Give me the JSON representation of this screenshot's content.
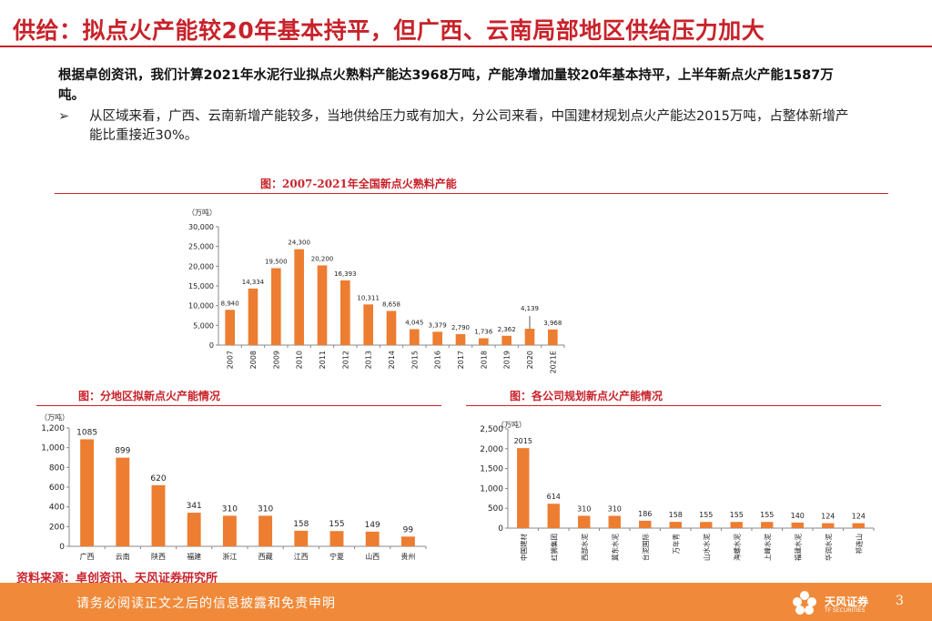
{
  "page": {
    "title": "供给：拟点火产能较20年基本持平，但广西、云南局部地区供给压力加大",
    "lead": "根据卓创资讯，我们计算2021年水泥行业拟点火熟料产能达3968万吨，产能净增加量较20年基本持平，上半年新点火产能1587万吨。",
    "bullet_mark": "➢",
    "bullet": "从区域来看，广西、云南新增产能较多，当地供给压力或有加大，分公司来看，中国建材规划点火产能达2015万吨，占整体新增产能比重接近30%。",
    "source": "资料来源：卓创资讯、天风证券研究所",
    "footer_text": "请务必阅读正文之后的信息披露和免责申明",
    "brand_name": "天风证券",
    "brand_sub": "TF SECURITIES",
    "page_number": "3"
  },
  "colors": {
    "bar": "#ed7d31",
    "accent": "#c8222a",
    "footer": "#f08a3a"
  },
  "chart_data": [
    {
      "type": "bar",
      "title": "图：2007-2021年全国新点火熟料产能",
      "unit": "（万吨）",
      "categories": [
        "2007",
        "2008",
        "2009",
        "2010",
        "2011",
        "2012",
        "2013",
        "2014",
        "2015",
        "2016",
        "2017",
        "2018",
        "2019",
        "2020",
        "2021E"
      ],
      "values": [
        8940,
        14334,
        19500,
        24300,
        20200,
        16393,
        10311,
        8658,
        4045,
        3379,
        2790,
        1736,
        2362,
        4139,
        3968
      ],
      "labels": [
        "8,940",
        "14,334",
        "19,500",
        "24,300",
        "20,200",
        "16,393",
        "10,311",
        "8,658",
        "4,045",
        "3,379",
        "2,790",
        "1,736",
        "2,362",
        "4,139",
        "3,968"
      ],
      "ylim": [
        0,
        30000
      ],
      "yticks": [
        0,
        5000,
        10000,
        15000,
        20000,
        25000,
        30000
      ],
      "ytick_labels": [
        "0",
        "5,000",
        "10,000",
        "15,000",
        "20,000",
        "25,000",
        "30,000"
      ]
    },
    {
      "type": "bar",
      "title": "图：分地区拟新点火产能情况",
      "unit": "（万吨）",
      "categories": [
        "广西",
        "云南",
        "陕西",
        "福建",
        "浙江",
        "西藏",
        "江西",
        "宁夏",
        "山西",
        "贵州"
      ],
      "values": [
        1085,
        899,
        620,
        341,
        310,
        310,
        158,
        155,
        149,
        99
      ],
      "labels": [
        "1085",
        "899",
        "620",
        "341",
        "310",
        "310",
        "158",
        "155",
        "149",
        "99"
      ],
      "ylim": [
        0,
        1200
      ],
      "yticks": [
        0,
        200,
        400,
        600,
        800,
        1000,
        1200
      ],
      "ytick_labels": [
        "0",
        "200",
        "400",
        "600",
        "800",
        "1,000",
        "1,200"
      ]
    },
    {
      "type": "bar",
      "title": "图：各公司规划新点火产能情况",
      "unit": "（万吨）",
      "categories": [
        "中国建材",
        "红狮集团",
        "西部水泥",
        "冀东水泥",
        "台泥国际",
        "万年青",
        "山水水泥",
        "海螺水泥",
        "上峰水泥",
        "福建水泥",
        "华润水泥",
        "祁连山"
      ],
      "values": [
        2015,
        614,
        310,
        310,
        186,
        158,
        155,
        155,
        155,
        140,
        124,
        124
      ],
      "labels": [
        "2015",
        "614",
        "310",
        "310",
        "186",
        "158",
        "155",
        "155",
        "155",
        "140",
        "124",
        "124"
      ],
      "ylim": [
        0,
        2500
      ],
      "yticks": [
        0,
        500,
        1000,
        1500,
        2000,
        2500
      ],
      "ytick_labels": [
        "0",
        "500",
        "1,000",
        "1,500",
        "2,000",
        "2,500"
      ]
    }
  ]
}
